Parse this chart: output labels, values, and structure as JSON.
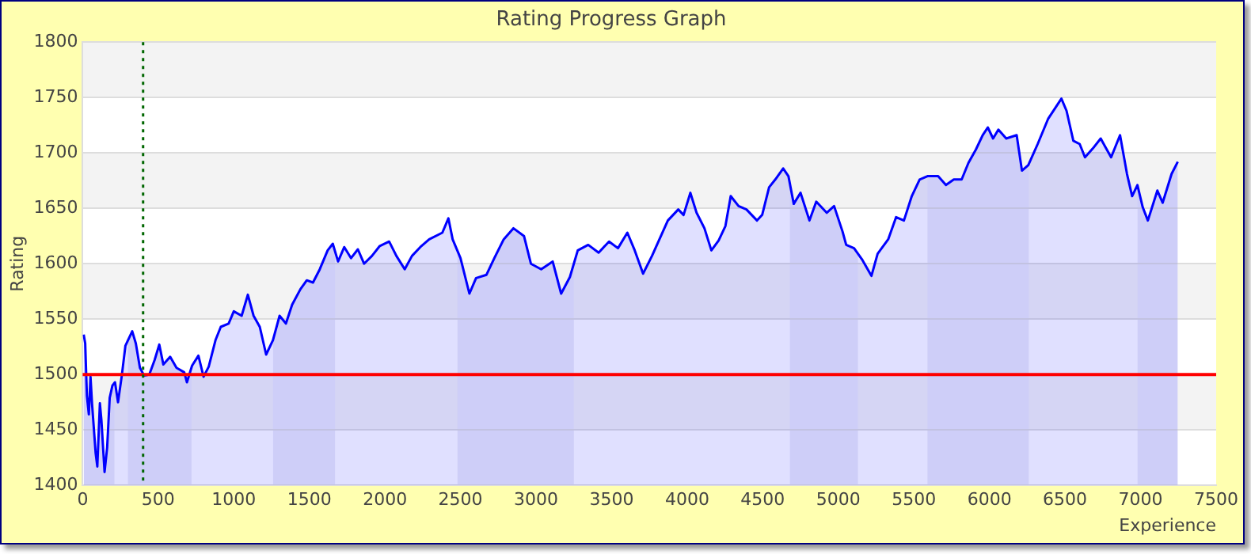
{
  "chart_data": {
    "type": "area",
    "title": "Rating Progress Graph",
    "xlabel": "Experience",
    "ylabel": "Rating",
    "xlim": [
      0,
      7500
    ],
    "xticks": [
      0,
      500,
      1000,
      1500,
      2000,
      2500,
      3000,
      3500,
      4000,
      4500,
      5000,
      5500,
      6000,
      6500,
      7000,
      7500
    ],
    "ylim": [
      1400,
      1800
    ],
    "yticks": [
      1400,
      1450,
      1500,
      1550,
      1600,
      1650,
      1700,
      1750,
      1800
    ],
    "grid": "y",
    "legend": false,
    "series": [
      {
        "color": "#0000ff",
        "x": [
          7,
          17,
          28,
          41,
          52,
          62,
          86,
          97,
          114,
          124,
          145,
          162,
          179,
          197,
          214,
          234,
          259,
          283,
          300,
          328,
          352,
          379,
          407,
          441,
          476,
          507,
          534,
          579,
          621,
          672,
          690,
          724,
          766,
          800,
          834,
          879,
          914,
          966,
          1000,
          1052,
          1093,
          1131,
          1172,
          1214,
          1259,
          1303,
          1345,
          1386,
          1441,
          1483,
          1524,
          1569,
          1621,
          1655,
          1690,
          1731,
          1776,
          1821,
          1862,
          1914,
          1966,
          2028,
          2076,
          2131,
          2179,
          2234,
          2293,
          2380,
          2420,
          2448,
          2500,
          2559,
          2603,
          2672,
          2724,
          2786,
          2850,
          2920,
          2966,
          3034,
          3110,
          3166,
          3224,
          3276,
          3345,
          3414,
          3483,
          3542,
          3604,
          3653,
          3708,
          3767,
          3872,
          3941,
          3976,
          4021,
          4062,
          4114,
          4160,
          4208,
          4253,
          4288,
          4340,
          4392,
          4462,
          4496,
          4542,
          4583,
          4635,
          4670,
          4705,
          4750,
          4809,
          4854,
          4923,
          4972,
          5028,
          5052,
          5104,
          5156,
          5219,
          5260,
          5330,
          5382,
          5434,
          5486,
          5538,
          5590,
          5660,
          5712,
          5764,
          5816,
          5861,
          5910,
          5955,
          5989,
          6024,
          6059,
          6111,
          6180,
          6215,
          6257,
          6319,
          6389,
          6476,
          6510,
          6555,
          6597,
          6632,
          6684,
          6736,
          6764,
          6805,
          6864,
          6910,
          6944,
          6979,
          7014,
          7048,
          7111,
          7146,
          7205,
          7246
        ],
        "values": [
          1536,
          1528,
          1481,
          1464,
          1498,
          1474,
          1429,
          1417,
          1474,
          1459,
          1412,
          1434,
          1479,
          1490,
          1493,
          1475,
          1499,
          1526,
          1531,
          1539,
          1528,
          1506,
          1499,
          1500,
          1513,
          1527,
          1509,
          1516,
          1506,
          1502,
          1493,
          1508,
          1517,
          1498,
          1507,
          1531,
          1543,
          1546,
          1557,
          1553,
          1572,
          1553,
          1543,
          1518,
          1531,
          1553,
          1546,
          1563,
          1577,
          1585,
          1583,
          1595,
          1612,
          1618,
          1602,
          1615,
          1605,
          1613,
          1600,
          1607,
          1616,
          1620,
          1607,
          1595,
          1607,
          1615,
          1622,
          1628,
          1641,
          1622,
          1605,
          1573,
          1587,
          1590,
          1605,
          1622,
          1632,
          1625,
          1600,
          1595,
          1602,
          1573,
          1588,
          1612,
          1617,
          1610,
          1620,
          1614,
          1628,
          1612,
          1591,
          1607,
          1639,
          1649,
          1644,
          1664,
          1646,
          1632,
          1612,
          1621,
          1634,
          1661,
          1652,
          1649,
          1639,
          1644,
          1669,
          1676,
          1686,
          1679,
          1654,
          1664,
          1639,
          1656,
          1646,
          1652,
          1629,
          1617,
          1614,
          1604,
          1589,
          1609,
          1622,
          1642,
          1639,
          1661,
          1676,
          1679,
          1679,
          1671,
          1676,
          1676,
          1691,
          1703,
          1716,
          1723,
          1713,
          1721,
          1713,
          1716,
          1684,
          1689,
          1708,
          1731,
          1749,
          1738,
          1711,
          1708,
          1696,
          1704,
          1713,
          1706,
          1696,
          1716,
          1681,
          1661,
          1671,
          1651,
          1639,
          1666,
          1655,
          1681,
          1692
        ]
      }
    ],
    "bands": [
      {
        "axis": "x",
        "from": 0,
        "to": 210,
        "color": "#ebebf7"
      },
      {
        "axis": "x",
        "from": 300,
        "to": 720,
        "color": "#ebebf7"
      },
      {
        "axis": "x",
        "from": 1260,
        "to": 1670,
        "color": "#ebebf7"
      },
      {
        "axis": "x",
        "from": 2480,
        "to": 3250,
        "color": "#ebebf7"
      },
      {
        "axis": "x",
        "from": 4680,
        "to": 5130,
        "color": "#ebebf7"
      },
      {
        "axis": "x",
        "from": 5590,
        "to": 6260,
        "color": "#ebebf7"
      },
      {
        "axis": "x",
        "from": 6980,
        "to": 7250,
        "color": "#ebebf7"
      }
    ],
    "ref_lines": [
      {
        "axis": "y",
        "value": 1500,
        "color": "#ff0000",
        "line_style": "solid"
      },
      {
        "axis": "x",
        "value": 400,
        "color": "#006600",
        "line_style": "dotted"
      }
    ]
  }
}
